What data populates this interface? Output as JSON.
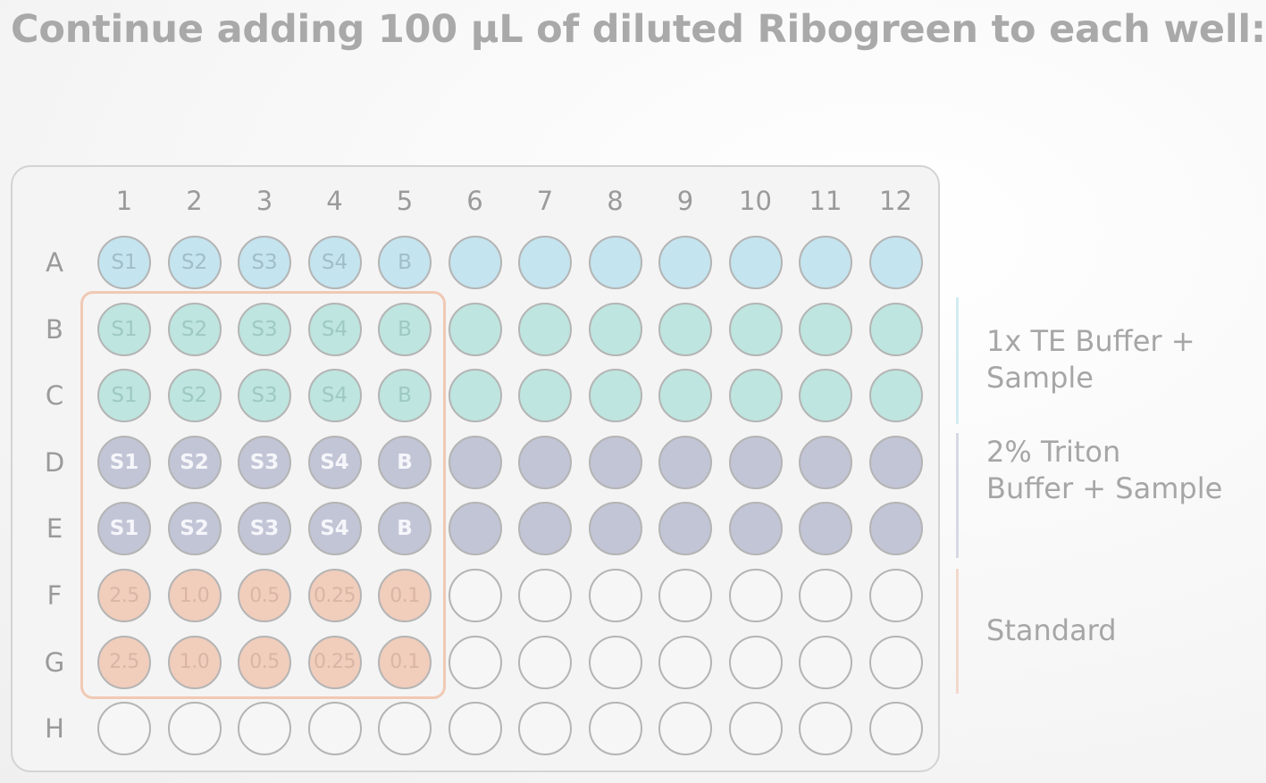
{
  "title": "Continue adding 100 µL of diluted Ribogreen to each well:",
  "plate": {
    "columns": [
      "1",
      "2",
      "3",
      "4",
      "5",
      "6",
      "7",
      "8",
      "9",
      "10",
      "11",
      "12"
    ],
    "rows": [
      {
        "label": "A",
        "type": "blue",
        "wells": [
          "S1",
          "S2",
          "S3",
          "S4",
          "B",
          "",
          "",
          "",
          "",
          "",
          "",
          ""
        ]
      },
      {
        "label": "B",
        "type": "teal",
        "wells": [
          "S1",
          "S2",
          "S3",
          "S4",
          "B",
          "",
          "",
          "",
          "",
          "",
          "",
          ""
        ]
      },
      {
        "label": "C",
        "type": "teal",
        "wells": [
          "S1",
          "S2",
          "S3",
          "S4",
          "B",
          "",
          "",
          "",
          "",
          "",
          "",
          ""
        ]
      },
      {
        "label": "D",
        "type": "navy",
        "wells": [
          "S1",
          "S2",
          "S3",
          "S4",
          "B",
          "",
          "",
          "",
          "",
          "",
          "",
          ""
        ]
      },
      {
        "label": "E",
        "type": "navy",
        "wells": [
          "S1",
          "S2",
          "S3",
          "S4",
          "B",
          "",
          "",
          "",
          "",
          "",
          "",
          ""
        ]
      },
      {
        "label": "F",
        "type": "peach",
        "wells": [
          "2.5",
          "1.0",
          "0.5",
          "0.25",
          "0.1",
          "",
          "",
          "",
          "",
          "",
          "",
          ""
        ]
      },
      {
        "label": "G",
        "type": "peach",
        "wells": [
          "2.5",
          "1.0",
          "0.5",
          "0.25",
          "0.1",
          "",
          "",
          "",
          "",
          "",
          "",
          ""
        ]
      },
      {
        "label": "H",
        "type": "empty",
        "wells": [
          "",
          "",
          "",
          "",
          "",
          "",
          "",
          "",
          "",
          "",
          "",
          ""
        ]
      }
    ],
    "filled_columns": {
      "peach": 5
    }
  },
  "legend": [
    {
      "key": "te",
      "line1": "1x TE Buffer +",
      "line2": "Sample",
      "color": "#c4e4ef"
    },
    {
      "key": "triton",
      "line1": "2% Triton",
      "line2": "Buffer + Sample",
      "color": "#c2c5d6"
    },
    {
      "key": "standard",
      "line1": "Standard",
      "line2": "",
      "color": "#f1cdbc"
    }
  ]
}
